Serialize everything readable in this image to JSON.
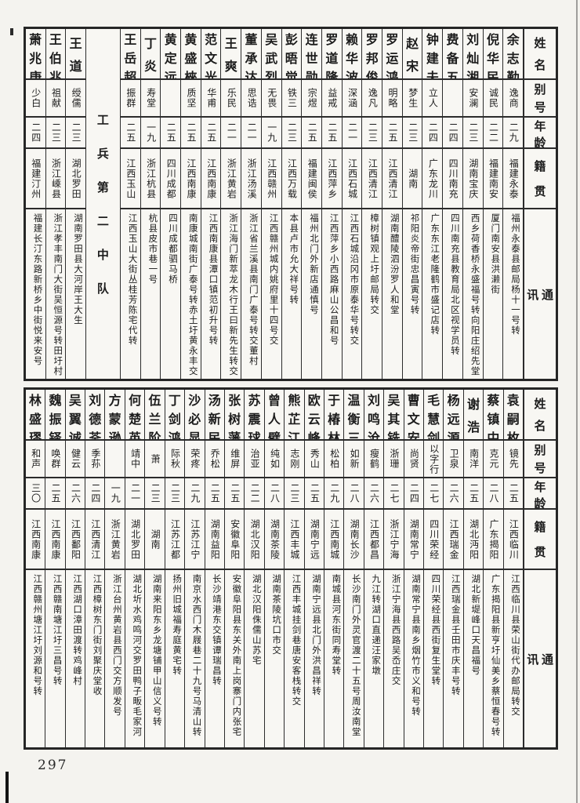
{
  "page_number": "297",
  "row_labels": [
    "姓名",
    "别号",
    "年龄",
    "籍贯",
    "通讯处"
  ],
  "colors": {
    "paper": "#f4f3ef",
    "ink": "#1c1c1c"
  },
  "sections": {
    "top": {
      "people": [
        {
          "name": "余志勤",
          "alias": "逸商",
          "age": "二九",
          "origin": "福建永泰",
          "address": "福州永泰县邮局杨十一号转"
        },
        {
          "name": "倪华民",
          "alias": "诚民",
          "age": "二二",
          "origin": "福建南安",
          "address": "厦门南安县洪濑街"
        },
        {
          "name": "刘灿湘",
          "alias": "安澜",
          "age": "二三",
          "origin": "湖南宝庆",
          "address": "西乡荷香桥永盛福号转向阳庄绍先堂"
        },
        {
          "name": "费备五",
          "alias": "",
          "age": "二四",
          "origin": "四川南充",
          "address": "四川南充县教育局北区视学员转"
        },
        {
          "name": "钟建夫",
          "alias": "立人",
          "age": "二四",
          "origin": "广东龙川",
          "address": "广东东江老隆鹤市盛记店转"
        },
        {
          "name": "赵宋",
          "alias": "梦生",
          "age": "二三",
          "origin": "湖南",
          "address": "祁阳炎帝街忠昌寅号转"
        },
        {
          "name": "罗运鸿",
          "alias": "明略",
          "age": "二五",
          "origin": "江西清江",
          "address": "湖南醴陵泗汾罗人和堂"
        },
        {
          "name": "罗邦俊",
          "alias": "逸凡",
          "age": "二三",
          "origin": "江西清江",
          "address": "樟树镇观上圩邮局转交"
        },
        {
          "name": "赖华波",
          "alias": "深涵",
          "age": "二一",
          "origin": "江西石城",
          "address": "江西石城沿冈市原泰华号转交"
        },
        {
          "name": "罗道隆",
          "alias": "益戒",
          "age": "二五",
          "origin": "江西萍乡",
          "address": "江西萍乡小西路麻山公昌和号"
        },
        {
          "name": "连世勋",
          "alias": "宗煜",
          "age": "二五",
          "origin": "福建闽侯",
          "address": "福州北门外新店通慎号"
        },
        {
          "name": "彭晤觉",
          "alias": "铁三",
          "age": "二三",
          "origin": "江西万载",
          "address": "本县卢市允大祥号转"
        },
        {
          "name": "吴武烈",
          "alias": "无畏",
          "age": "一九",
          "origin": "江西赣州",
          "address": "江西赣州城内姚府里十四号交"
        },
        {
          "name": "董承达",
          "alias": "思诰",
          "age": "二一",
          "origin": "浙江汤溪",
          "address": "浙江省兰溪县南门广泰号转交董村"
        },
        {
          "name": "王爽",
          "alias": "乐民",
          "age": "二一",
          "origin": "浙江黄岩",
          "address": "浙江海门新萃龙木行王曰新先生转交"
        },
        {
          "name": "范文光",
          "alias": "华甫",
          "age": "二五",
          "origin": "江西南康",
          "address": "江西南康县潭口镇范初升号转"
        },
        {
          "name": "黄盛棶",
          "alias": "质坚",
          "age": "二五",
          "origin": "江西南康",
          "address": "南康城南街广泰号转赤土圩黄永丰交"
        },
        {
          "name": "黄定远",
          "alias": "",
          "age": "二五",
          "origin": "四川成都",
          "address": "四川成都驷马桥"
        },
        {
          "name": "丁炎",
          "alias": "寿堂",
          "age": "一九",
          "origin": "浙江杭县",
          "address": "杭县皮市巷一号"
        },
        {
          "name": "王岳超",
          "alias": "振群",
          "age": "二五",
          "origin": "江西玉山",
          "address": "江西玉山大街丛桂芳陈宅代转"
        },
        {
          "type": "divider",
          "label": "工兵第二中队"
        },
        {
          "name": "王道",
          "alias": "绶儒",
          "age": "二三",
          "origin": "湖北罗田",
          "address": "湖南罗田县大河岸王大生"
        },
        {
          "name": "王伯兆",
          "alias": "祖献",
          "age": "二三",
          "origin": "浙江嵊县",
          "address": "浙江孝丰南门大街吴恒源号转田圩村"
        },
        {
          "name": "萧兆庚",
          "alias": "少白",
          "age": "二四",
          "origin": "福建汀州",
          "address": "福建长汀东路新桥乡中街悦来安号"
        }
      ]
    },
    "bottom": {
      "people": [
        {
          "name": "袁嗣枚",
          "alias": "镜先",
          "age": "二五",
          "origin": "江西临川",
          "address": "江西临川县荣山街代办邮局转交"
        },
        {
          "name": "蔡镇中",
          "alias": "克元",
          "age": "二八",
          "origin": "广东揭阳",
          "address": "广东揭阳县新亨圩仙美乡蔡恒春号转"
        },
        {
          "name": "谢浩",
          "alias": "南洋",
          "age": "二五",
          "origin": "湖北沔阳",
          "address": "湖北新堤峰口天昌福号"
        },
        {
          "name": "杨远源",
          "alias": "卫泉",
          "age": "二六",
          "origin": "江西瑞金",
          "address": "江西瑞金县壬田市庆丰号转"
        },
        {
          "name": "毛慧剑",
          "alias": "以字行",
          "age": "二七",
          "origin": "四川荣经",
          "address": "四川荣经县西街复生堂转"
        },
        {
          "name": "曹文安",
          "alias": "尚贤",
          "age": "二四",
          "origin": "湖南常宁",
          "address": "湖南常宁县南乡烟竹市义和号转"
        },
        {
          "name": "吴其铣",
          "alias": "浙珊",
          "age": "二七",
          "origin": "浙江宁海",
          "address": "浙江宁海县西路吴岙庄交"
        },
        {
          "name": "刘鸣沧",
          "alias": "瘦鹤",
          "age": "二六",
          "origin": "江西都昌",
          "address": "九江转湖口直递汪家墩"
        },
        {
          "name": "温衡三",
          "alias": "如新",
          "age": "二八",
          "origin": "湖南长沙",
          "address": "长沙南门外灵官渡二十五号周汝南堂"
        },
        {
          "name": "于椿林",
          "alias": "松柏",
          "age": "二九",
          "origin": "江西南城",
          "address": "南城县河东街同寿堂转"
        },
        {
          "name": "欧云峰",
          "alias": "秀山",
          "age": "二五",
          "origin": "湖南宁远",
          "address": "湖南宁远县北门外洪昌祥转"
        },
        {
          "name": "熊芷江",
          "alias": "志刚",
          "age": "二三",
          "origin": "江西丰城",
          "address": "江西丰城挂剑巷唐安客栈转交"
        },
        {
          "name": "曾人璧",
          "alias": "纯如",
          "age": "二八",
          "origin": "湖南茶陵",
          "address": "湖南茶陵坑口市交"
        },
        {
          "name": "苏震球",
          "alias": "治亚",
          "age": "二二",
          "origin": "湖北汉阳",
          "address": "湖北汉阳侏儒山苏宅"
        },
        {
          "name": "张树藩",
          "alias": "维屏",
          "age": "二五",
          "origin": "安徽阜阳",
          "address": "安徽阜阳县东关外南上岗寨门内张宅"
        },
        {
          "name": "汤新民",
          "alias": "乔松",
          "age": "二五",
          "origin": "湖南益阳",
          "address": "长沙靖港东交镇谭瑞昌转"
        },
        {
          "name": "沙必显",
          "alias": "荣疼",
          "age": "二九",
          "origin": "江苏江宁",
          "address": "南京水西门木屐巷二十九号马清山转"
        },
        {
          "name": "丁剑鸿",
          "alias": "际秋",
          "age": "二三",
          "origin": "江苏江都",
          "address": "扬州旧城福寿庭黄宅转"
        },
        {
          "name": "伍兰阶",
          "alias": "萧",
          "age": "二三",
          "origin": "湖南",
          "address": "湖南来阳东乡龙塘铺甲山信义号转"
        },
        {
          "name": "何楚英",
          "alias": "靖中",
          "age": "二一",
          "origin": "湖北罗田",
          "address": "湖北圻水鸡鸣河交罗田鸭子畈毛家河"
        },
        {
          "name": "方蒙逊",
          "alias": "",
          "age": "一九",
          "origin": "浙江黄岩",
          "address": "浙江台州黄岩县西门交方顺发号"
        },
        {
          "name": "刘德荃",
          "alias": "季荪",
          "age": "二四",
          "origin": "江西清江",
          "address": "江西樟树东门街刘聚庆堂收"
        },
        {
          "name": "吴翼诚",
          "alias": "健云",
          "age": "二六",
          "origin": "江西鄱阳",
          "address": "江西湖口漳田渡转鸡峰村"
        },
        {
          "name": "魏振铎",
          "alias": "唤群",
          "age": "二五",
          "origin": "江西南康",
          "address": "江西赣南塘江圩三昌号转"
        },
        {
          "name": "林盛璆",
          "alias": "和声",
          "age": "三〇",
          "origin": "江西南康",
          "address": "江西赣州塘江圩刘源和号转"
        }
      ]
    }
  }
}
